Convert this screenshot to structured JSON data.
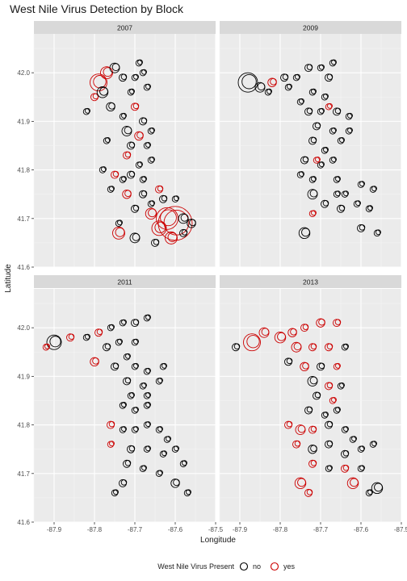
{
  "chart_data": {
    "type": "scatter",
    "title": "West Nile Virus Detection by Block",
    "xlabel": "Longitude",
    "ylabel": "Latitude",
    "xlim": [
      -87.95,
      -87.5
    ],
    "ylim": [
      41.6,
      42.08
    ],
    "x_ticks": [
      -87.9,
      -87.8,
      -87.7,
      -87.6,
      -87.5
    ],
    "x_tick_labels": [
      "-87.9",
      "-87.8",
      "-87.7",
      "-87.6",
      "-87.5"
    ],
    "y_ticks": [
      41.6,
      41.7,
      41.8,
      41.9,
      42.0
    ],
    "y_tick_labels": [
      "41.6",
      "41.7",
      "41.8",
      "41.9",
      "42.0"
    ],
    "grid": true,
    "legend": {
      "title": "West Nile Virus Present",
      "position": "bottom",
      "entries": [
        {
          "label": "no",
          "color": "#000000"
        },
        {
          "label": "yes",
          "color": "#cc0000"
        }
      ]
    },
    "panels": [
      {
        "label": "2007",
        "points": [
          [
            -87.77,
            42.0,
            10,
            1
          ],
          [
            -87.79,
            41.98,
            14,
            1
          ],
          [
            -87.75,
            42.01,
            8,
            0
          ],
          [
            -87.8,
            41.95,
            6,
            1
          ],
          [
            -87.78,
            41.96,
            9,
            0
          ],
          [
            -87.73,
            41.99,
            6,
            0
          ],
          [
            -87.76,
            41.93,
            7,
            0
          ],
          [
            -87.71,
            41.96,
            5,
            0
          ],
          [
            -87.69,
            42.02,
            5,
            0
          ],
          [
            -87.68,
            42.0,
            5,
            0
          ],
          [
            -87.7,
            41.99,
            5,
            0
          ],
          [
            -87.67,
            41.97,
            5,
            0
          ],
          [
            -87.7,
            41.93,
            6,
            1
          ],
          [
            -87.73,
            41.91,
            5,
            0
          ],
          [
            -87.68,
            41.9,
            6,
            0
          ],
          [
            -87.72,
            41.88,
            8,
            0
          ],
          [
            -87.69,
            41.87,
            7,
            1
          ],
          [
            -87.66,
            41.88,
            5,
            0
          ],
          [
            -87.71,
            41.85,
            6,
            0
          ],
          [
            -87.67,
            41.85,
            5,
            0
          ],
          [
            -87.72,
            41.83,
            6,
            1
          ],
          [
            -87.69,
            41.81,
            5,
            0
          ],
          [
            -87.66,
            41.82,
            5,
            0
          ],
          [
            -87.78,
            41.8,
            5,
            0
          ],
          [
            -87.75,
            41.79,
            6,
            1
          ],
          [
            -87.73,
            41.78,
            5,
            0
          ],
          [
            -87.71,
            41.79,
            6,
            0
          ],
          [
            -87.68,
            41.78,
            5,
            0
          ],
          [
            -87.76,
            41.76,
            5,
            0
          ],
          [
            -87.72,
            41.75,
            7,
            1
          ],
          [
            -87.68,
            41.75,
            6,
            0
          ],
          [
            -87.66,
            41.73,
            5,
            0
          ],
          [
            -87.63,
            41.74,
            6,
            0
          ],
          [
            -87.7,
            41.72,
            6,
            0
          ],
          [
            -87.66,
            41.71,
            9,
            1
          ],
          [
            -87.62,
            41.7,
            18,
            1
          ],
          [
            -87.6,
            41.69,
            28,
            1
          ],
          [
            -87.64,
            41.68,
            12,
            1
          ],
          [
            -87.58,
            41.7,
            8,
            0
          ],
          [
            -87.56,
            41.69,
            7,
            0
          ],
          [
            -87.74,
            41.67,
            10,
            1
          ],
          [
            -87.7,
            41.66,
            8,
            0
          ],
          [
            -87.65,
            41.65,
            6,
            0
          ],
          [
            -87.61,
            41.66,
            10,
            1
          ],
          [
            -87.58,
            41.67,
            6,
            0
          ],
          [
            -87.74,
            41.69,
            5,
            0
          ],
          [
            -87.82,
            41.92,
            5,
            0
          ],
          [
            -87.77,
            41.86,
            5,
            0
          ],
          [
            -87.64,
            41.76,
            6,
            1
          ],
          [
            -87.6,
            41.74,
            5,
            0
          ]
        ]
      },
      {
        "label": "2009",
        "points": [
          [
            -87.85,
            41.97,
            8,
            0
          ],
          [
            -87.88,
            41.98,
            16,
            0
          ],
          [
            -87.82,
            41.98,
            7,
            1
          ],
          [
            -87.79,
            41.99,
            6,
            0
          ],
          [
            -87.83,
            41.96,
            5,
            0
          ],
          [
            -87.76,
            41.99,
            5,
            0
          ],
          [
            -87.73,
            42.01,
            6,
            0
          ],
          [
            -87.7,
            42.01,
            5,
            0
          ],
          [
            -87.67,
            42.02,
            5,
            0
          ],
          [
            -87.68,
            41.99,
            6,
            0
          ],
          [
            -87.72,
            41.96,
            5,
            0
          ],
          [
            -87.69,
            41.95,
            5,
            0
          ],
          [
            -87.75,
            41.94,
            5,
            0
          ],
          [
            -87.73,
            41.92,
            6,
            0
          ],
          [
            -87.7,
            41.92,
            5,
            0
          ],
          [
            -87.66,
            41.92,
            6,
            0
          ],
          [
            -87.63,
            41.91,
            5,
            0
          ],
          [
            -87.71,
            41.89,
            6,
            0
          ],
          [
            -87.67,
            41.88,
            5,
            0
          ],
          [
            -87.63,
            41.88,
            5,
            0
          ],
          [
            -87.72,
            41.86,
            6,
            0
          ],
          [
            -87.69,
            41.84,
            5,
            0
          ],
          [
            -87.65,
            41.86,
            5,
            0
          ],
          [
            -87.74,
            41.82,
            6,
            0
          ],
          [
            -87.7,
            41.81,
            5,
            0
          ],
          [
            -87.67,
            41.82,
            5,
            0
          ],
          [
            -87.75,
            41.79,
            5,
            0
          ],
          [
            -87.72,
            41.78,
            5,
            0
          ],
          [
            -87.66,
            41.78,
            5,
            0
          ],
          [
            -87.64,
            41.75,
            5,
            0
          ],
          [
            -87.6,
            41.77,
            5,
            0
          ],
          [
            -87.57,
            41.76,
            5,
            0
          ],
          [
            -87.72,
            41.75,
            8,
            0
          ],
          [
            -87.69,
            41.73,
            6,
            0
          ],
          [
            -87.65,
            41.72,
            6,
            0
          ],
          [
            -87.61,
            41.73,
            5,
            0
          ],
          [
            -87.58,
            41.72,
            5,
            0
          ],
          [
            -87.72,
            41.71,
            5,
            1
          ],
          [
            -87.74,
            41.67,
            9,
            0
          ],
          [
            -87.6,
            41.68,
            6,
            0
          ],
          [
            -87.56,
            41.67,
            5,
            0
          ],
          [
            -87.66,
            41.75,
            5,
            0
          ],
          [
            -87.71,
            41.82,
            5,
            1
          ],
          [
            -87.68,
            41.93,
            5,
            1
          ],
          [
            -87.78,
            41.97,
            5,
            0
          ]
        ]
      },
      {
        "label": "2011",
        "points": [
          [
            -87.9,
            41.97,
            12,
            0
          ],
          [
            -87.92,
            41.96,
            5,
            1
          ],
          [
            -87.86,
            41.98,
            6,
            1
          ],
          [
            -87.82,
            41.98,
            5,
            0
          ],
          [
            -87.79,
            41.99,
            6,
            1
          ],
          [
            -87.76,
            42.0,
            5,
            0
          ],
          [
            -87.73,
            42.01,
            5,
            0
          ],
          [
            -87.7,
            42.01,
            6,
            0
          ],
          [
            -87.67,
            42.02,
            5,
            0
          ],
          [
            -87.77,
            41.96,
            6,
            0
          ],
          [
            -87.74,
            41.97,
            5,
            0
          ],
          [
            -87.7,
            41.97,
            5,
            0
          ],
          [
            -87.72,
            41.94,
            5,
            0
          ],
          [
            -87.8,
            41.93,
            7,
            1
          ],
          [
            -87.75,
            41.92,
            6,
            0
          ],
          [
            -87.7,
            41.92,
            5,
            0
          ],
          [
            -87.67,
            41.91,
            5,
            0
          ],
          [
            -87.63,
            41.92,
            5,
            0
          ],
          [
            -87.72,
            41.89,
            6,
            0
          ],
          [
            -87.68,
            41.88,
            5,
            0
          ],
          [
            -87.64,
            41.89,
            5,
            0
          ],
          [
            -87.71,
            41.86,
            5,
            0
          ],
          [
            -87.67,
            41.86,
            5,
            0
          ],
          [
            -87.73,
            41.84,
            5,
            0
          ],
          [
            -87.7,
            41.83,
            5,
            0
          ],
          [
            -87.67,
            41.84,
            5,
            0
          ],
          [
            -87.76,
            41.8,
            6,
            1
          ],
          [
            -87.73,
            41.79,
            5,
            0
          ],
          [
            -87.7,
            41.79,
            5,
            0
          ],
          [
            -87.67,
            41.8,
            5,
            0
          ],
          [
            -87.64,
            41.79,
            5,
            0
          ],
          [
            -87.62,
            41.77,
            5,
            0
          ],
          [
            -87.76,
            41.76,
            5,
            1
          ],
          [
            -87.71,
            41.75,
            6,
            0
          ],
          [
            -87.67,
            41.75,
            5,
            0
          ],
          [
            -87.63,
            41.74,
            5,
            0
          ],
          [
            -87.6,
            41.75,
            5,
            0
          ],
          [
            -87.72,
            41.72,
            6,
            0
          ],
          [
            -87.68,
            41.71,
            5,
            0
          ],
          [
            -87.64,
            41.7,
            5,
            0
          ],
          [
            -87.73,
            41.68,
            6,
            0
          ],
          [
            -87.6,
            41.68,
            7,
            0
          ],
          [
            -87.57,
            41.66,
            5,
            0
          ],
          [
            -87.75,
            41.66,
            5,
            0
          ],
          [
            -87.58,
            41.72,
            5,
            0
          ]
        ]
      },
      {
        "label": "2013",
        "points": [
          [
            -87.87,
            41.97,
            14,
            1
          ],
          [
            -87.91,
            41.96,
            6,
            0
          ],
          [
            -87.84,
            41.99,
            8,
            1
          ],
          [
            -87.8,
            41.98,
            9,
            1
          ],
          [
            -87.77,
            41.99,
            7,
            1
          ],
          [
            -87.74,
            42.0,
            6,
            1
          ],
          [
            -87.7,
            42.01,
            7,
            1
          ],
          [
            -87.66,
            42.01,
            6,
            1
          ],
          [
            -87.76,
            41.96,
            8,
            1
          ],
          [
            -87.72,
            41.96,
            6,
            1
          ],
          [
            -87.68,
            41.96,
            6,
            1
          ],
          [
            -87.64,
            41.96,
            5,
            0
          ],
          [
            -87.78,
            41.93,
            6,
            0
          ],
          [
            -87.74,
            41.92,
            7,
            1
          ],
          [
            -87.7,
            41.92,
            6,
            0
          ],
          [
            -87.66,
            41.92,
            5,
            1
          ],
          [
            -87.72,
            41.89,
            8,
            0
          ],
          [
            -87.68,
            41.88,
            6,
            1
          ],
          [
            -87.65,
            41.88,
            5,
            0
          ],
          [
            -87.71,
            41.86,
            6,
            0
          ],
          [
            -87.67,
            41.85,
            5,
            1
          ],
          [
            -87.73,
            41.83,
            6,
            0
          ],
          [
            -87.69,
            41.82,
            5,
            0
          ],
          [
            -87.66,
            41.83,
            5,
            0
          ],
          [
            -87.78,
            41.8,
            6,
            1
          ],
          [
            -87.75,
            41.79,
            8,
            1
          ],
          [
            -87.72,
            41.79,
            6,
            1
          ],
          [
            -87.68,
            41.8,
            6,
            0
          ],
          [
            -87.64,
            41.79,
            5,
            0
          ],
          [
            -87.62,
            41.77,
            5,
            0
          ],
          [
            -87.76,
            41.76,
            6,
            1
          ],
          [
            -87.72,
            41.75,
            7,
            0
          ],
          [
            -87.68,
            41.76,
            6,
            0
          ],
          [
            -87.64,
            41.74,
            6,
            0
          ],
          [
            -87.6,
            41.75,
            5,
            0
          ],
          [
            -87.57,
            41.76,
            5,
            0
          ],
          [
            -87.72,
            41.72,
            6,
            1
          ],
          [
            -87.68,
            41.71,
            5,
            0
          ],
          [
            -87.64,
            41.71,
            6,
            1
          ],
          [
            -87.6,
            41.71,
            5,
            0
          ],
          [
            -87.75,
            41.68,
            9,
            1
          ],
          [
            -87.73,
            41.66,
            6,
            1
          ],
          [
            -87.62,
            41.68,
            9,
            1
          ],
          [
            -87.56,
            41.67,
            9,
            0
          ],
          [
            -87.58,
            41.66,
            5,
            0
          ]
        ]
      }
    ]
  }
}
